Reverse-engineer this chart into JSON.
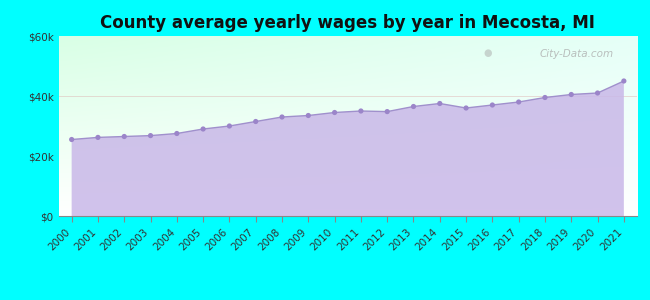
{
  "title": "County average yearly wages by year in Mecosta, MI",
  "years": [
    2000,
    2001,
    2002,
    2003,
    2004,
    2005,
    2006,
    2007,
    2008,
    2009,
    2010,
    2011,
    2012,
    2013,
    2014,
    2015,
    2016,
    2017,
    2018,
    2019,
    2020,
    2021
  ],
  "wages": [
    25500,
    26200,
    26500,
    26800,
    27500,
    29000,
    30000,
    31500,
    33000,
    33500,
    34500,
    35000,
    34800,
    36500,
    37500,
    36000,
    37000,
    38000,
    39500,
    40500,
    41000,
    45000
  ],
  "fill_color": "#c9b8e8",
  "line_color": "#a090cc",
  "marker_color": "#9b85c9",
  "outer_bg": "#00ffff",
  "ylim": [
    0,
    60000
  ],
  "yticks": [
    0,
    20000,
    40000,
    60000
  ],
  "watermark": "City-Data.com",
  "title_fontsize": 12,
  "tick_fontsize": 7.5,
  "bg_gradient_top": "#e8fff0",
  "bg_gradient_bottom": "#f0fff8",
  "bg_top_left": "#d0ffe8",
  "bg_top_right": "#e8f8ff"
}
